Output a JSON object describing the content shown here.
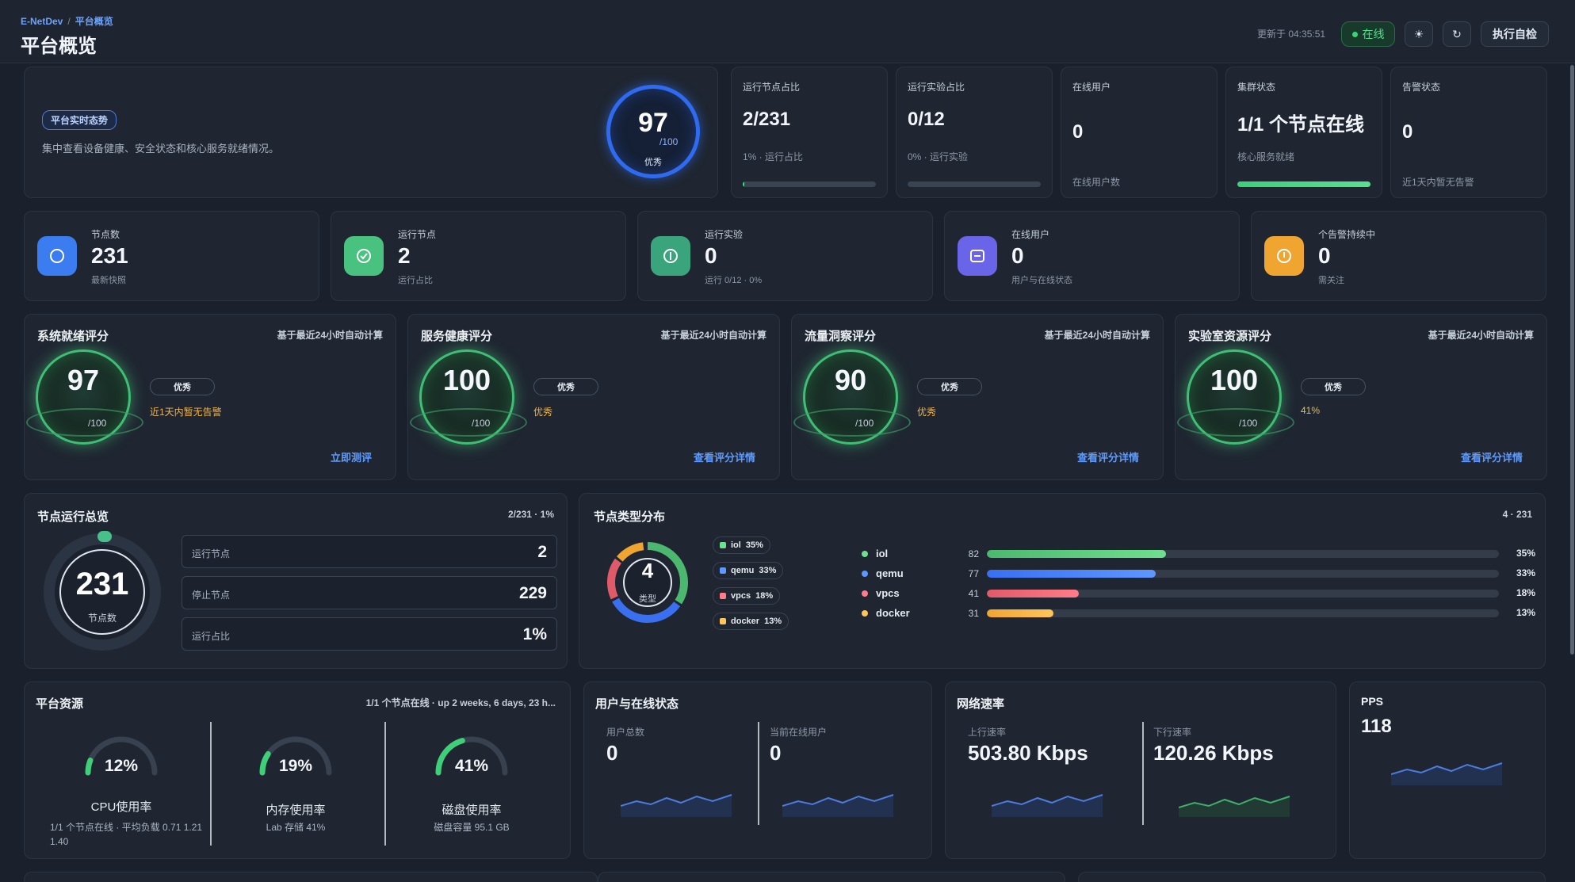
{
  "header": {
    "breadcrumb_root": "E-NetDev",
    "breadcrumb_sep": "/",
    "breadcrumb_current": "平台概览",
    "title": "平台概览",
    "updated": "更新于 04:35:51",
    "status": "在线",
    "theme_icon": "☀",
    "refresh_icon": "↻",
    "self_check": "执行自检"
  },
  "hero": {
    "tag": "平台实时态势",
    "desc": "集中查看设备健康、安全状态和核心服务就绪情况。",
    "score": "97",
    "max": "/100",
    "grade": "优秀"
  },
  "mini_cards": [
    {
      "label": "运行节点占比",
      "value": "2/231",
      "sub": "1% · 运行占比",
      "progress": 0.01
    },
    {
      "label": "运行实验占比",
      "value": "0/12",
      "sub": "0% · 运行实验",
      "progress": 0
    },
    {
      "label": "在线用户",
      "value": "0",
      "sub": "在线用户数"
    },
    {
      "label": "集群状态",
      "value": "1/1 个节点在线",
      "sub": "核心服务就绪",
      "progress": 1
    },
    {
      "label": "告警状态",
      "value": "0",
      "sub": "近1天内暂无告警"
    }
  ],
  "stats": [
    {
      "label": "节点数",
      "value": "231",
      "sub": "最新快照",
      "color": "#3b7cf0"
    },
    {
      "label": "运行节点",
      "value": "2",
      "sub": "运行占比",
      "color": "#48c27e"
    },
    {
      "label": "运行实验",
      "value": "0",
      "sub": "运行 0/12 · 0%",
      "color": "#3aa57c"
    },
    {
      "label": "在线用户",
      "value": "0",
      "sub": "用户与在线状态",
      "color": "#6a64e8"
    },
    {
      "label": "个告警持续中",
      "value": "0",
      "sub": "需关注",
      "color": "#f0a531"
    }
  ],
  "scores": [
    {
      "title": "系统就绪评分",
      "note": "基于最近24小时自动计算",
      "score": "97",
      "of": "/100",
      "grade": "优秀",
      "desc": "近1天内暂无告警",
      "link": "立即测评"
    },
    {
      "title": "服务健康评分",
      "note": "基于最近24小时自动计算",
      "score": "100",
      "of": "/100",
      "grade": "优秀",
      "desc": "优秀",
      "link": "查看评分详情"
    },
    {
      "title": "流量洞察评分",
      "note": "基于最近24小时自动计算",
      "score": "90",
      "of": "/100",
      "grade": "优秀",
      "desc": "优秀",
      "link": "查看评分详情"
    },
    {
      "title": "实验室资源评分",
      "note": "基于最近24小时自动计算",
      "score": "100",
      "of": "/100",
      "grade": "优秀",
      "desc": "41%",
      "link": "查看评分详情"
    }
  ],
  "nodes": {
    "title": "节点运行总览",
    "ratio": "2/231 · 1%",
    "total": "231",
    "caption": "节点数",
    "rows": [
      {
        "k": "运行节点",
        "v": "2"
      },
      {
        "k": "停止节点",
        "v": "229"
      },
      {
        "k": "运行占比",
        "v": "1%"
      }
    ]
  },
  "types": {
    "title": "节点类型分布",
    "summary": "4 · 231",
    "center": "4",
    "center_label": "类型",
    "items": [
      {
        "name": "iol",
        "count": "82",
        "pct": "35%",
        "frac": 0.35,
        "color": "#4cb86f",
        "color2": "#6fe08f"
      },
      {
        "name": "qemu",
        "count": "77",
        "pct": "33%",
        "frac": 0.33,
        "color": "#3a6ff0",
        "color2": "#5f97ff"
      },
      {
        "name": "vpcs",
        "count": "41",
        "pct": "18%",
        "frac": 0.18,
        "color": "#e05b6a",
        "color2": "#ff7c88"
      },
      {
        "name": "docker",
        "count": "31",
        "pct": "13%",
        "frac": 0.13,
        "color": "#f0a531",
        "color2": "#ffc45a"
      }
    ]
  },
  "resources": {
    "title": "平台资源",
    "summary": "1/1 个节点在线 · up 2 weeks, 6 days, 23 h...",
    "gauges": [
      {
        "pct": "12%",
        "frac": 0.12,
        "label": "CPU使用率",
        "sub": "1/1 个节点在线 · 平均负载 0.71 1.21 1.40"
      },
      {
        "pct": "19%",
        "frac": 0.19,
        "label": "内存使用率",
        "sub": "Lab 存储 41%"
      },
      {
        "pct": "41%",
        "frac": 0.41,
        "label": "磁盘使用率",
        "sub": "磁盘容量 95.1 GB"
      }
    ]
  },
  "users": {
    "title": "用户与在线状态",
    "total_label": "用户总数",
    "total": "0",
    "online_label": "当前在线用户",
    "online": "0"
  },
  "net": {
    "title": "网络速率",
    "up_label": "上行速率",
    "up": "503.80 Kbps",
    "down_label": "下行速率",
    "down": "120.26 Kbps"
  },
  "pps": {
    "title": "PPS",
    "value": "118"
  },
  "icon_names": [
    "sun-icon",
    "refresh-icon",
    "nodes-icon",
    "check-icon",
    "info-icon",
    "user-icon",
    "alert-icon"
  ]
}
